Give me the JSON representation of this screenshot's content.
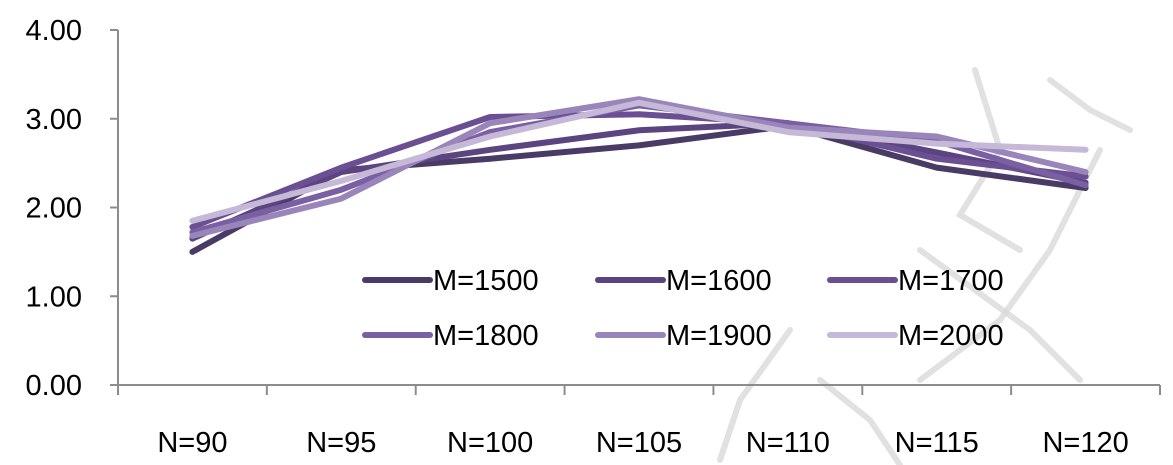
{
  "chart_data": {
    "type": "line",
    "categories": [
      "N=90",
      "N=95",
      "N=100",
      "N=105",
      "N=110",
      "N=115",
      "N=120"
    ],
    "ylim": [
      0,
      4
    ],
    "yticks": [
      "0.00",
      "1.00",
      "2.00",
      "3.00",
      "4.00"
    ],
    "grid": false,
    "legend_position": "center-right",
    "series": [
      {
        "name": "M=1500",
        "color": "#4a3a66",
        "values": [
          1.5,
          2.42,
          2.55,
          2.7,
          2.92,
          2.45,
          2.22
        ]
      },
      {
        "name": "M=1600",
        "color": "#5b4480",
        "values": [
          1.65,
          2.4,
          2.65,
          2.87,
          2.95,
          2.62,
          2.28
        ]
      },
      {
        "name": "M=1700",
        "color": "#6a4f93",
        "values": [
          1.78,
          2.45,
          3.02,
          3.05,
          2.95,
          2.55,
          2.35
        ]
      },
      {
        "name": "M=1800",
        "color": "#7b5fa3",
        "values": [
          1.72,
          2.2,
          2.85,
          3.15,
          2.95,
          2.75,
          2.25
        ]
      },
      {
        "name": "M=1900",
        "color": "#9a85bb",
        "values": [
          1.68,
          2.1,
          2.95,
          3.22,
          2.9,
          2.8,
          2.4
        ]
      },
      {
        "name": "M=2000",
        "color": "#c6b9d8",
        "values": [
          1.85,
          2.3,
          2.8,
          3.18,
          2.85,
          2.72,
          2.65
        ]
      }
    ]
  }
}
